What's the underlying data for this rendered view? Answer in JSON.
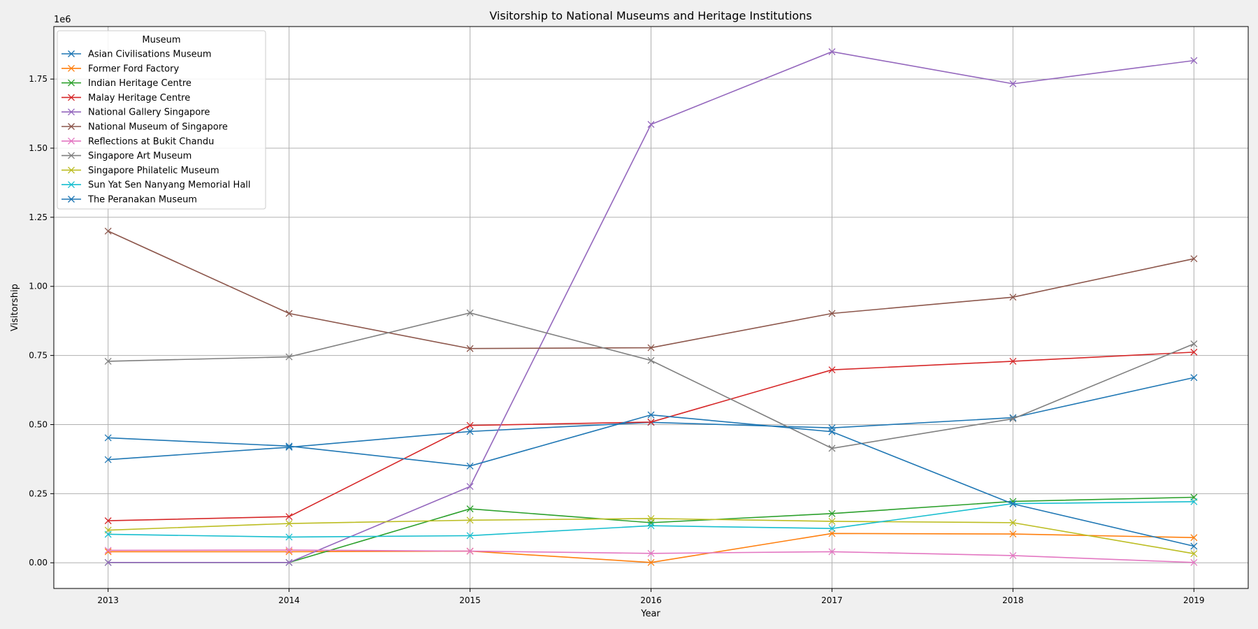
{
  "chart_data": {
    "type": "line",
    "title": "Visitorship to National Museums and Heritage Institutions",
    "xlabel": "Year",
    "ylabel": "Visitorship",
    "y_offset_label": "1e6",
    "legend_title": "Museum",
    "legend_position": "top-left",
    "grid": true,
    "marker": "x",
    "xlim": [
      2012.7,
      2019.3
    ],
    "ylim": [
      -0.093,
      1.94
    ],
    "x": [
      2013,
      2014,
      2015,
      2016,
      2017,
      2018,
      2019
    ],
    "x_ticks": [
      "2013",
      "2014",
      "2015",
      "2016",
      "2017",
      "2018",
      "2019"
    ],
    "y_ticks": [
      0.0,
      0.25,
      0.5,
      0.75,
      1.0,
      1.25,
      1.5,
      1.75
    ],
    "y_tick_labels": [
      "0.00",
      "0.25",
      "0.50",
      "0.75",
      "1.00",
      "1.25",
      "1.50",
      "1.75"
    ],
    "series": [
      {
        "name": "Asian Civilisations Museum",
        "color": "#1f77b4",
        "values": [
          0.373,
          0.418,
          0.475,
          0.508,
          0.488,
          0.525,
          0.67
        ]
      },
      {
        "name": "Former Ford Factory",
        "color": "#ff7f0e",
        "values": [
          0.04,
          0.04,
          0.042,
          0.001,
          0.106,
          0.104,
          0.091
        ]
      },
      {
        "name": "Indian Heritage Centre",
        "color": "#2ca02c",
        "values": [
          0.001,
          0.001,
          0.195,
          0.145,
          0.178,
          0.222,
          0.237
        ]
      },
      {
        "name": "Malay Heritage Centre",
        "color": "#d62728",
        "values": [
          0.152,
          0.167,
          0.497,
          0.509,
          0.698,
          0.729,
          0.762
        ]
      },
      {
        "name": "National Gallery Singapore",
        "color": "#9467bd",
        "values": [
          0.001,
          0.001,
          0.276,
          1.586,
          1.849,
          1.733,
          1.817
        ]
      },
      {
        "name": "National Museum of Singapore",
        "color": "#8c564b",
        "values": [
          1.2,
          0.902,
          0.775,
          0.778,
          0.902,
          0.961,
          1.1
        ]
      },
      {
        "name": "Reflections at Bukit Chandu",
        "color": "#e377c2",
        "values": [
          0.045,
          0.046,
          0.042,
          0.034,
          0.04,
          0.026,
          0.001
        ]
      },
      {
        "name": "Singapore Art Museum",
        "color": "#7f7f7f",
        "values": [
          0.729,
          0.745,
          0.904,
          0.732,
          0.414,
          0.521,
          0.792
        ]
      },
      {
        "name": "Singapore Philatelic Museum",
        "color": "#bcbd22",
        "values": [
          0.118,
          0.142,
          0.154,
          0.16,
          0.15,
          0.145,
          0.033
        ]
      },
      {
        "name": "Sun Yat Sen Nanyang Memorial Hall",
        "color": "#17becf",
        "values": [
          0.103,
          0.093,
          0.098,
          0.134,
          0.124,
          0.214,
          0.221
        ]
      },
      {
        "name": "The Peranakan Museum",
        "color": "#1f77b4",
        "values": [
          0.452,
          0.422,
          0.35,
          0.535,
          0.474,
          0.213,
          0.06
        ]
      }
    ]
  }
}
